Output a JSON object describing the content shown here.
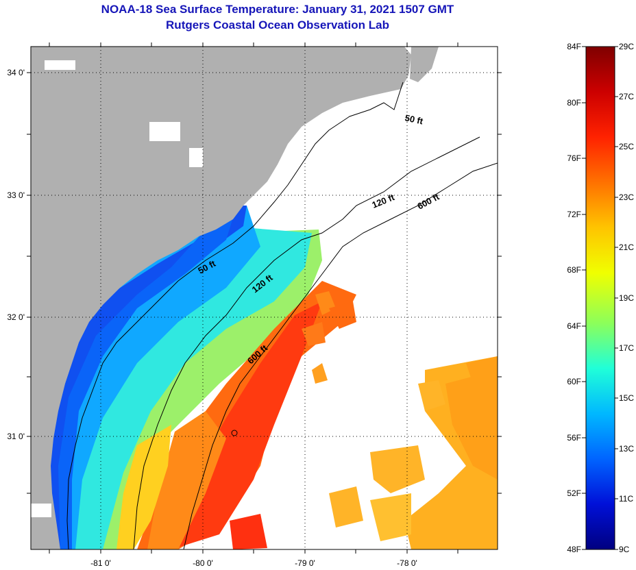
{
  "header": {
    "title_line1": "NOAA-18 Sea Surface Temperature:  January 31, 2021 1507 GMT",
    "title_line2": "Rutgers Coastal Ocean Observation Lab"
  },
  "map": {
    "lon_labels": [
      "-81 0'",
      "-80 0'",
      "-79 0'",
      "-78 0'"
    ],
    "lat_labels": [
      "34 0'",
      "33 0'",
      "32 0'",
      "31 0'"
    ],
    "contour_labels": [
      "50 ft",
      "120 ft",
      "600 ft",
      "50 ft",
      "120 ft",
      "600 ft"
    ],
    "colors": {
      "land": "#b0b0b0",
      "no_data": "#ffffff"
    }
  },
  "colorbar": {
    "fahrenheit_labels": [
      "84F",
      "80F",
      "76F",
      "72F",
      "68F",
      "64F",
      "60F",
      "56F",
      "52F",
      "48F"
    ],
    "celsius_labels": [
      "29C",
      "27C",
      "25C",
      "23C",
      "21C",
      "19C",
      "17C",
      "15C",
      "13C",
      "11C",
      "9C"
    ],
    "gradient_stops": [
      "#7f0000",
      "#cc0000",
      "#ff2200",
      "#ff7a00",
      "#ffc400",
      "#f0ff00",
      "#8cff5a",
      "#20ffd8",
      "#00b8ff",
      "#0064ff",
      "#0010d8",
      "#000080"
    ]
  }
}
